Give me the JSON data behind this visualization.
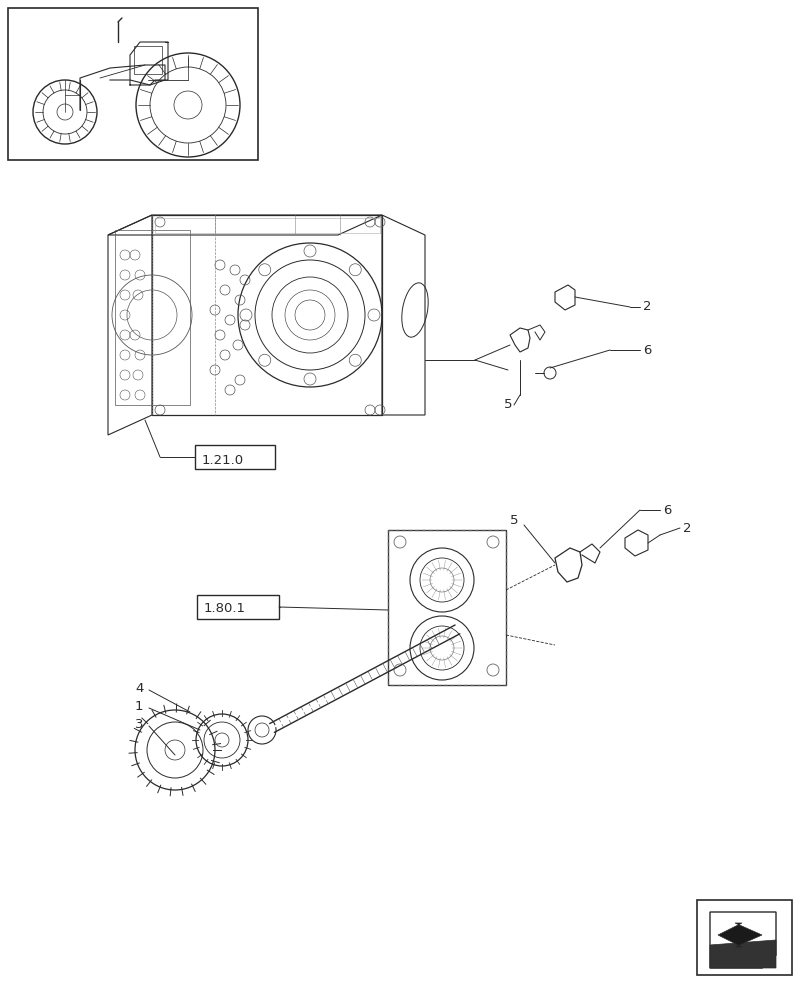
{
  "bg_color": "#ffffff",
  "line_color": "#2a2a2a",
  "fig_width": 8.12,
  "fig_height": 10.0,
  "dpi": 100,
  "lw_main": 0.8,
  "lw_thin": 0.5,
  "lw_thick": 1.2
}
